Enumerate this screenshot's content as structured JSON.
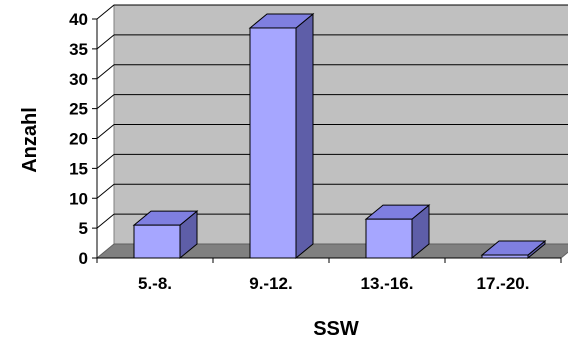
{
  "chart_data": {
    "type": "bar",
    "style": "3d-column",
    "categories": [
      "5.-8.",
      "9.-12.",
      "13.-16.",
      "17.-20."
    ],
    "values": [
      5.5,
      38.5,
      6.5,
      0.5
    ],
    "xlabel": "SSW",
    "ylabel": "Anzahl",
    "ylim": [
      0,
      40
    ],
    "yticks": [
      0,
      5,
      10,
      15,
      20,
      25,
      30,
      35,
      40
    ],
    "grid": true,
    "legend": "none",
    "colors": {
      "bar_front": "#A6A6FF",
      "bar_side": "#5E5EA8",
      "bar_top": "#7F7FE0",
      "back_wall": "#C0C0C0",
      "floor": "#808080",
      "gridline": "#000000"
    }
  }
}
